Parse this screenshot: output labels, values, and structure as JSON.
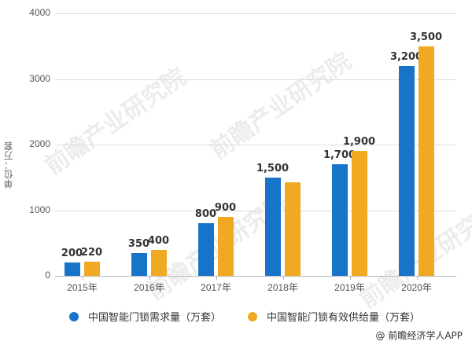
{
  "chart_data": {
    "type": "bar",
    "title": "",
    "xlabel": "",
    "ylabel": "单位：万套",
    "ylim": [
      0,
      4000
    ],
    "yticks": [
      "0",
      "1000",
      "2000",
      "3000",
      "4000"
    ],
    "grid": true,
    "legend_position": "bottom",
    "categories": [
      "2015年",
      "2016年",
      "2017年",
      "2018年",
      "2019年",
      "2020年"
    ],
    "series": [
      {
        "name": "中国智能门锁需求量（万套）",
        "color": "#1874c8",
        "values": [
          200,
          350,
          800,
          1500,
          1700,
          3200
        ],
        "labels": [
          "200",
          "350",
          "800",
          "1,500",
          "1,700",
          "3,200"
        ]
      },
      {
        "name": "中国智能门锁有效供给量（万套）",
        "color": "#f0a920",
        "values": [
          220,
          400,
          900,
          1420,
          1900,
          3500
        ],
        "labels": [
          "220",
          "400",
          "900",
          "",
          "1,900",
          "3,500"
        ]
      }
    ]
  },
  "legend": {
    "demand": "中国智能门锁需求量（万套）",
    "supply": "中国智能门锁有效供给量（万套）"
  },
  "watermark": "前瞻产业研究院",
  "credit": "@ 前瞻经济学人APP"
}
